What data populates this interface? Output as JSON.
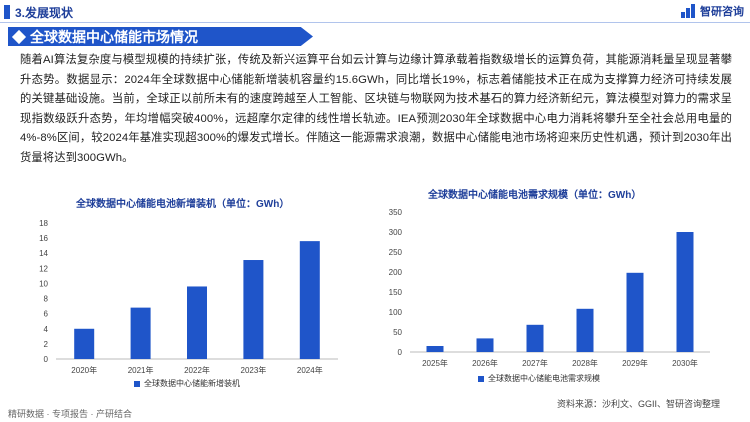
{
  "header": {
    "section_label": "3.发展现状",
    "logo_text": "智研咨询"
  },
  "banner": {
    "title": "全球数据中心储能市场情况"
  },
  "body": {
    "paragraph": "随着AI算法复杂度与模型规模的持续扩张，传统及新兴运算平台如云计算与边缘计算承载着指数级增长的运算负荷，其能源消耗量呈现显著攀升态势。数据显示：2024年全球数据中心储能新增装机容量约15.6GWh，同比增长19%，标志着储能技术正在成为支撑算力经济可持续发展的关键基础设施。当前，全球正以前所未有的速度跨越至人工智能、区块链与物联网为技术基石的算力经济新纪元，算法模型对算力的需求呈现指数级跃升态势，年均增幅突破400%，远超摩尔定律的线性增长轨迹。IEA预测2030年全球数据中心电力消耗将攀升至全社会总用电量的4%-8%区间，较2024年基准实现超300%的爆发式增长。伴随这一能源需求浪潮，数据中心储能电池市场将迎来历史性机遇，预计到2030年出货量将达到300GWh。"
  },
  "chart_data": [
    {
      "type": "bar",
      "title": "全球数据中心储能电池新增装机（单位：GWh）",
      "categories": [
        "2020年",
        "2021年",
        "2022年",
        "2023年",
        "2024年"
      ],
      "series": [
        {
          "name": "全球数据中心储能新增装机",
          "values": [
            4.0,
            6.8,
            9.6,
            13.1,
            15.6
          ]
        }
      ],
      "ylim": [
        0,
        18
      ],
      "yticks": [
        0,
        2,
        4,
        6,
        8,
        10,
        12,
        14,
        16,
        18
      ],
      "grid": false,
      "legend": "bottom",
      "color": "#1f55c9"
    },
    {
      "type": "bar",
      "title": "全球数据中心储能电池需求规模（单位：GWh）",
      "categories": [
        "2025年",
        "2026年",
        "2027年",
        "2028年",
        "2029年",
        "2030年"
      ],
      "series": [
        {
          "name": "全球数据中心储能电池需求规模",
          "values": [
            15,
            34,
            68,
            108,
            198,
            300
          ]
        }
      ],
      "ylim": [
        0,
        350
      ],
      "yticks": [
        0,
        50,
        100,
        150,
        200,
        250,
        300,
        350
      ],
      "grid": false,
      "legend": "bottom",
      "color": "#1f55c9"
    }
  ],
  "footer": {
    "left": "精研数据 · 专项报告 · 产研结合",
    "source": "资料来源：沙利文、GGII、智研咨询整理"
  }
}
